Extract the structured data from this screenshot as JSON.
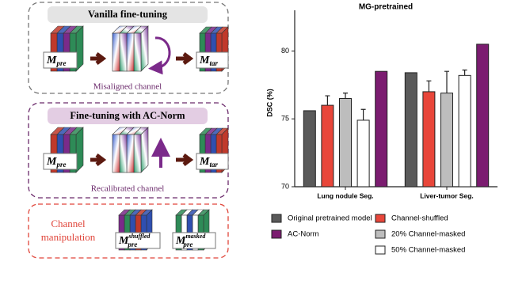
{
  "diagram": {
    "panels": [
      {
        "title": "Vanilla fine-tuning",
        "source": {
          "base": "M",
          "sub": "pre"
        },
        "target": {
          "base": "M",
          "sub": "tar"
        },
        "caption": "Misaligned channel"
      },
      {
        "title": "Fine-tuning with AC-Norm",
        "source": {
          "base": "M",
          "sub": "pre"
        },
        "target": {
          "base": "M",
          "sub": "tar"
        },
        "caption": "Recalibrated channel"
      }
    ],
    "manipulation": {
      "title": [
        "Channel",
        "manipulation"
      ],
      "models": [
        {
          "base": "M",
          "sub": "pre",
          "sup": "shuffled"
        },
        {
          "base": "M",
          "sub": "pre",
          "sup": "masked"
        }
      ]
    }
  },
  "chart_data": {
    "type": "bar",
    "title": "MG-pretrained",
    "y_label": "DSC (%)",
    "categories": [
      "Lung nodule Seg.",
      "Liver-tumor Seg."
    ],
    "ylim": [
      70,
      83
    ],
    "yticks": [
      70,
      75,
      80
    ],
    "series": [
      {
        "name": "Original pretrained model",
        "color": "#5a5a5a",
        "values": [
          75.6,
          78.4
        ],
        "errors": [
          null,
          null
        ]
      },
      {
        "name": "Channel-shuffled",
        "color": "#e8463a",
        "values": [
          76.0,
          77.0
        ],
        "errors": [
          0.7,
          0.8
        ]
      },
      {
        "name": "20% Channel-masked",
        "color": "#bdbdbd",
        "values": [
          76.5,
          76.9
        ],
        "errors": [
          0.4,
          1.6
        ]
      },
      {
        "name": "50% Channel-masked",
        "color": "#ffffff",
        "values": [
          74.9,
          78.2
        ],
        "errors": [
          0.8,
          0.4
        ]
      },
      {
        "name": "AC-Norm",
        "color": "#7b1c70",
        "values": [
          78.5,
          80.5
        ],
        "errors": [
          null,
          null
        ]
      }
    ]
  }
}
